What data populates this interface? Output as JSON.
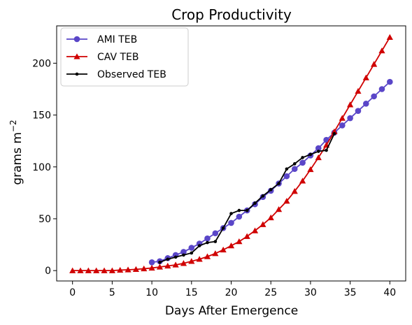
{
  "chart_data": {
    "type": "line",
    "title": "Crop Productivity",
    "xlabel": "Days After Emergence",
    "ylabel": "grams m",
    "ylabel_superscript": "−2",
    "xlim": [
      -2,
      42
    ],
    "ylim": [
      -10,
      236
    ],
    "xticks": [
      0,
      5,
      10,
      15,
      20,
      25,
      30,
      35,
      40
    ],
    "yticks": [
      0,
      50,
      100,
      150,
      200
    ],
    "grid": false,
    "legend_position": "top-left",
    "series": [
      {
        "name": "AMI TEB",
        "color": "#5a46c8",
        "marker": "circle",
        "x": [
          10,
          11,
          12,
          13,
          14,
          15,
          16,
          17,
          18,
          19,
          20,
          21,
          22,
          23,
          24,
          25,
          26,
          27,
          28,
          29,
          30,
          31,
          32,
          33,
          34,
          35,
          36,
          37,
          38,
          39,
          40
        ],
        "y": [
          8,
          9,
          12,
          15,
          18,
          22,
          26,
          31,
          36,
          41,
          46,
          52,
          58,
          64,
          71,
          77,
          84,
          91,
          98,
          104,
          111,
          118,
          126,
          133,
          140,
          147,
          154,
          161,
          168,
          175,
          182
        ]
      },
      {
        "name": "CAV TEB",
        "color": "#d00000",
        "marker": "triangle",
        "x": [
          0,
          1,
          2,
          3,
          4,
          5,
          6,
          7,
          8,
          9,
          10,
          11,
          12,
          13,
          14,
          15,
          16,
          17,
          18,
          19,
          20,
          21,
          22,
          23,
          24,
          25,
          26,
          27,
          28,
          29,
          30,
          31,
          32,
          33,
          34,
          35,
          36,
          37,
          38,
          39,
          40
        ],
        "y": [
          0,
          0,
          0,
          0,
          0,
          0,
          0.5,
          0.8,
          1.2,
          1.8,
          2.5,
          3.5,
          4.5,
          5.5,
          7,
          9,
          11,
          13.5,
          16.5,
          20,
          24,
          28,
          33,
          38.5,
          44.5,
          51,
          59,
          67,
          76.5,
          86.5,
          97.5,
          109,
          121,
          134,
          147,
          160,
          173,
          186,
          199,
          212,
          225
        ]
      },
      {
        "name": "Observed TEB",
        "color": "#000000",
        "marker": "dot",
        "x": [
          11,
          12,
          13,
          14,
          15,
          16,
          17,
          18,
          19,
          20,
          21,
          22,
          23,
          24,
          25,
          26,
          27,
          28,
          29,
          30,
          31,
          32,
          33
        ],
        "y": [
          8,
          11,
          13,
          15,
          17,
          24,
          27,
          28,
          41,
          55,
          58,
          58,
          65,
          72,
          78,
          84,
          98,
          103,
          109,
          112,
          115,
          116,
          132
        ]
      }
    ]
  }
}
